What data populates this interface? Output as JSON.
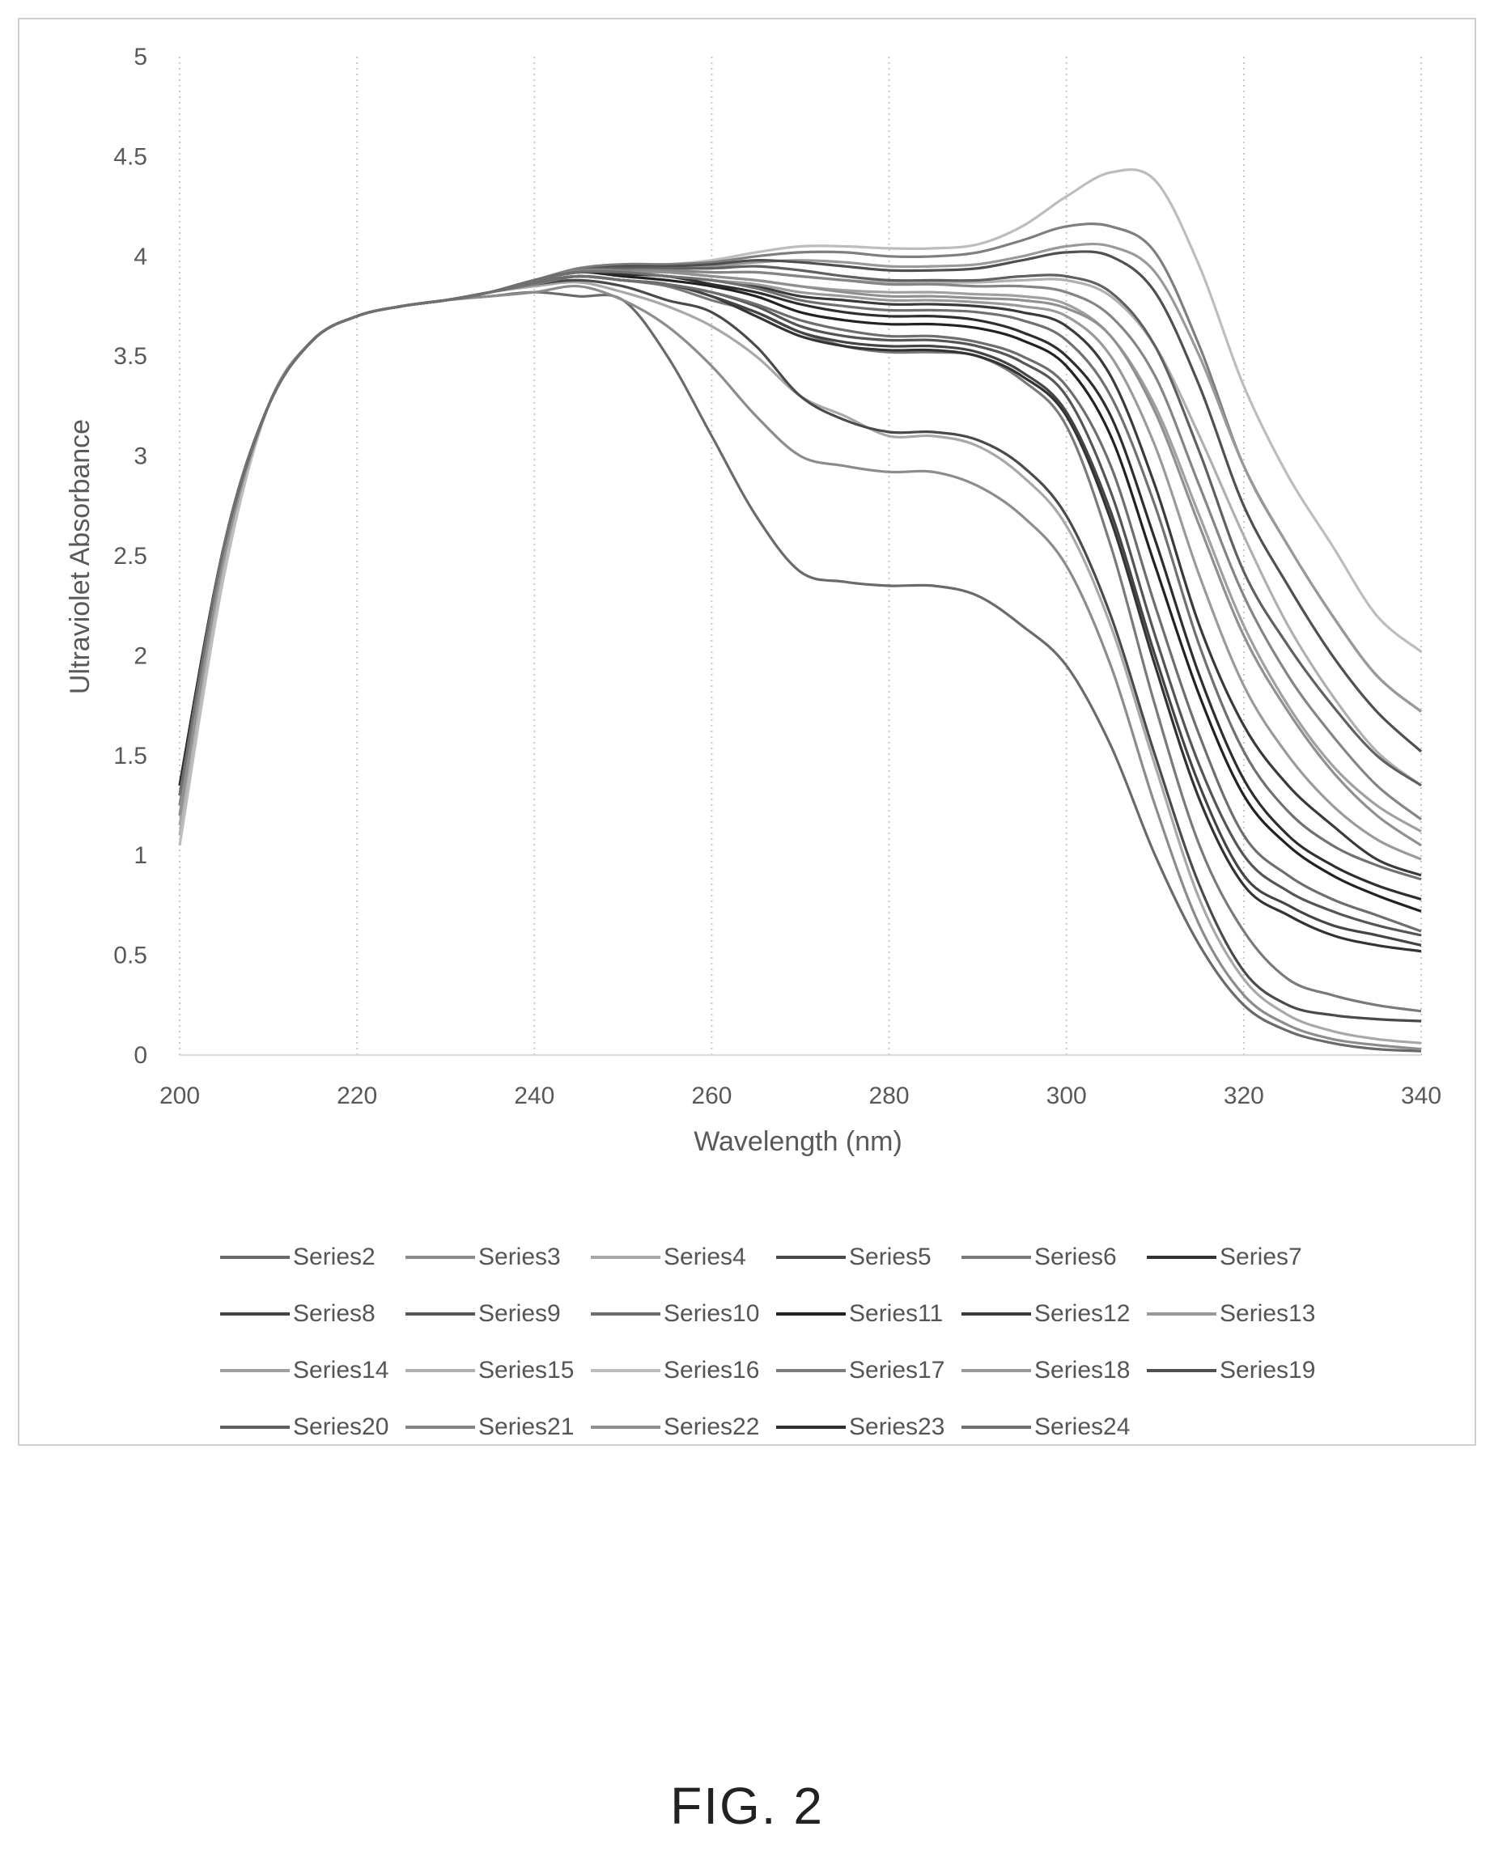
{
  "chart_data": {
    "type": "line",
    "title": "",
    "xlabel": "Wavelength (nm)",
    "ylabel": "Ultraviolet Absorbance",
    "xlim": [
      200,
      340
    ],
    "ylim": [
      0,
      5
    ],
    "xticks": [
      "200",
      "220",
      "240",
      "260",
      "280",
      "300",
      "320",
      "340"
    ],
    "yticks": [
      "0",
      "0.5",
      "1",
      "1.5",
      "2",
      "2.5",
      "3",
      "3.5",
      "4",
      "4.5",
      "5"
    ],
    "grid": "vertical dotted",
    "legend_position": "bottom",
    "x": [
      200,
      205,
      210,
      215,
      220,
      225,
      230,
      235,
      240,
      245,
      250,
      255,
      260,
      265,
      270,
      275,
      280,
      285,
      290,
      295,
      300,
      305,
      310,
      315,
      320,
      325,
      330,
      335,
      340
    ],
    "series": [
      {
        "name": "Series2",
        "color": "#6a6a6a",
        "values": [
          1.2,
          2.5,
          3.25,
          3.58,
          3.7,
          3.75,
          3.78,
          3.8,
          3.82,
          3.8,
          3.78,
          3.5,
          3.1,
          2.7,
          2.42,
          2.37,
          2.35,
          2.35,
          2.3,
          2.15,
          1.95,
          1.55,
          1.0,
          0.55,
          0.25,
          0.12,
          0.06,
          0.03,
          0.02
        ]
      },
      {
        "name": "Series3",
        "color": "#8c8c8c",
        "values": [
          1.25,
          2.5,
          3.25,
          3.58,
          3.7,
          3.75,
          3.78,
          3.8,
          3.82,
          3.85,
          3.78,
          3.65,
          3.45,
          3.2,
          3.0,
          2.95,
          2.92,
          2.92,
          2.85,
          2.7,
          2.45,
          1.95,
          1.25,
          0.65,
          0.3,
          0.15,
          0.08,
          0.05,
          0.03
        ]
      },
      {
        "name": "Series4",
        "color": "#a8a8a8",
        "values": [
          1.1,
          2.45,
          3.25,
          3.58,
          3.7,
          3.75,
          3.78,
          3.82,
          3.85,
          3.87,
          3.82,
          3.75,
          3.65,
          3.5,
          3.3,
          3.2,
          3.1,
          3.1,
          3.05,
          2.9,
          2.65,
          2.15,
          1.45,
          0.78,
          0.38,
          0.2,
          0.12,
          0.08,
          0.06
        ]
      },
      {
        "name": "Series5",
        "color": "#4a4a4a",
        "values": [
          1.3,
          2.55,
          3.25,
          3.58,
          3.7,
          3.75,
          3.78,
          3.82,
          3.86,
          3.88,
          3.85,
          3.78,
          3.72,
          3.55,
          3.3,
          3.18,
          3.12,
          3.12,
          3.08,
          2.95,
          2.7,
          2.2,
          1.5,
          0.85,
          0.42,
          0.25,
          0.2,
          0.18,
          0.17
        ]
      },
      {
        "name": "Series6",
        "color": "#7a7a7a",
        "values": [
          1.3,
          2.55,
          3.25,
          3.58,
          3.7,
          3.75,
          3.78,
          3.82,
          3.86,
          3.9,
          3.88,
          3.85,
          3.78,
          3.72,
          3.62,
          3.55,
          3.52,
          3.52,
          3.5,
          3.38,
          3.15,
          2.55,
          1.75,
          1.05,
          0.62,
          0.38,
          0.3,
          0.25,
          0.22
        ]
      },
      {
        "name": "Series7",
        "color": "#333333",
        "values": [
          1.35,
          2.55,
          3.25,
          3.58,
          3.7,
          3.75,
          3.78,
          3.82,
          3.87,
          3.9,
          3.88,
          3.86,
          3.8,
          3.7,
          3.6,
          3.55,
          3.53,
          3.53,
          3.5,
          3.4,
          3.2,
          2.68,
          1.95,
          1.28,
          0.85,
          0.7,
          0.6,
          0.55,
          0.52
        ]
      },
      {
        "name": "Series8",
        "color": "#444444",
        "values": [
          1.35,
          2.55,
          3.25,
          3.58,
          3.7,
          3.75,
          3.78,
          3.82,
          3.87,
          3.9,
          3.88,
          3.86,
          3.8,
          3.72,
          3.62,
          3.57,
          3.55,
          3.55,
          3.52,
          3.42,
          3.22,
          2.72,
          2.0,
          1.35,
          0.9,
          0.75,
          0.65,
          0.6,
          0.55
        ]
      },
      {
        "name": "Series9",
        "color": "#555555",
        "values": [
          1.3,
          2.55,
          3.25,
          3.58,
          3.7,
          3.75,
          3.78,
          3.82,
          3.87,
          3.9,
          3.88,
          3.86,
          3.82,
          3.75,
          3.65,
          3.6,
          3.58,
          3.58,
          3.55,
          3.47,
          3.3,
          2.82,
          2.1,
          1.45,
          1.0,
          0.82,
          0.72,
          0.65,
          0.6
        ]
      },
      {
        "name": "Series10",
        "color": "#6e6e6e",
        "values": [
          1.3,
          2.5,
          3.25,
          3.58,
          3.7,
          3.75,
          3.78,
          3.82,
          3.87,
          3.9,
          3.88,
          3.86,
          3.82,
          3.76,
          3.68,
          3.63,
          3.6,
          3.6,
          3.57,
          3.5,
          3.35,
          2.95,
          2.25,
          1.6,
          1.1,
          0.9,
          0.78,
          0.7,
          0.62
        ]
      },
      {
        "name": "Series11",
        "color": "#222222",
        "values": [
          1.35,
          2.55,
          3.25,
          3.58,
          3.7,
          3.75,
          3.78,
          3.82,
          3.88,
          3.92,
          3.9,
          3.88,
          3.85,
          3.8,
          3.72,
          3.68,
          3.66,
          3.66,
          3.64,
          3.58,
          3.45,
          3.1,
          2.45,
          1.8,
          1.3,
          1.05,
          0.9,
          0.8,
          0.72
        ]
      },
      {
        "name": "Series12",
        "color": "#3a3a3a",
        "values": [
          1.3,
          2.55,
          3.25,
          3.58,
          3.7,
          3.75,
          3.78,
          3.82,
          3.88,
          3.92,
          3.92,
          3.9,
          3.88,
          3.85,
          3.8,
          3.78,
          3.76,
          3.76,
          3.75,
          3.72,
          3.65,
          3.4,
          2.85,
          2.15,
          1.65,
          1.35,
          1.15,
          0.98,
          0.9
        ]
      },
      {
        "name": "Series13",
        "color": "#9a9a9a",
        "values": [
          1.2,
          2.5,
          3.25,
          3.58,
          3.7,
          3.75,
          3.78,
          3.82,
          3.88,
          3.92,
          3.92,
          3.9,
          3.88,
          3.86,
          3.82,
          3.8,
          3.78,
          3.78,
          3.77,
          3.75,
          3.7,
          3.5,
          3.05,
          2.4,
          1.85,
          1.5,
          1.25,
          1.08,
          0.98
        ]
      },
      {
        "name": "Series14",
        "color": "#a0a0a0",
        "values": [
          1.15,
          2.45,
          3.25,
          3.58,
          3.7,
          3.75,
          3.78,
          3.82,
          3.88,
          3.93,
          3.93,
          3.92,
          3.9,
          3.88,
          3.85,
          3.83,
          3.82,
          3.82,
          3.81,
          3.8,
          3.76,
          3.6,
          3.25,
          2.7,
          2.15,
          1.75,
          1.45,
          1.25,
          1.12
        ]
      },
      {
        "name": "Series15",
        "color": "#b0b0b0",
        "values": [
          1.1,
          2.45,
          3.25,
          3.58,
          3.7,
          3.75,
          3.78,
          3.82,
          3.88,
          3.93,
          3.94,
          3.93,
          3.92,
          3.92,
          3.9,
          3.88,
          3.87,
          3.87,
          3.87,
          3.88,
          3.88,
          3.8,
          3.55,
          3.1,
          2.6,
          2.15,
          1.8,
          1.52,
          1.35
        ]
      },
      {
        "name": "Series16",
        "color": "#bdbdbd",
        "values": [
          1.05,
          2.4,
          3.25,
          3.58,
          3.7,
          3.75,
          3.78,
          3.82,
          3.88,
          3.94,
          3.96,
          3.96,
          3.98,
          4.02,
          4.05,
          4.05,
          4.04,
          4.04,
          4.06,
          4.15,
          4.3,
          4.42,
          4.38,
          3.95,
          3.35,
          2.9,
          2.55,
          2.2,
          2.02
        ]
      },
      {
        "name": "Series17",
        "color": "#7e7e7e",
        "values": [
          1.25,
          2.5,
          3.25,
          3.58,
          3.7,
          3.75,
          3.78,
          3.82,
          3.88,
          3.94,
          3.96,
          3.96,
          3.97,
          4.0,
          4.02,
          4.02,
          4.0,
          4.0,
          4.02,
          4.08,
          4.15,
          4.15,
          4.02,
          3.55,
          2.95,
          2.55,
          2.2,
          1.9,
          1.72
        ]
      },
      {
        "name": "Series18",
        "color": "#999999",
        "values": [
          1.2,
          2.5,
          3.25,
          3.58,
          3.7,
          3.75,
          3.78,
          3.82,
          3.88,
          3.93,
          3.95,
          3.95,
          3.95,
          3.97,
          3.98,
          3.97,
          3.95,
          3.95,
          3.96,
          4.0,
          4.05,
          4.05,
          3.92,
          3.5,
          2.95,
          2.55,
          2.2,
          1.9,
          1.72
        ]
      },
      {
        "name": "Series19",
        "color": "#505050",
        "values": [
          1.3,
          2.55,
          3.25,
          3.58,
          3.7,
          3.75,
          3.78,
          3.82,
          3.88,
          3.93,
          3.95,
          3.95,
          3.96,
          3.98,
          3.97,
          3.95,
          3.93,
          3.93,
          3.94,
          3.98,
          4.02,
          4.0,
          3.82,
          3.35,
          2.75,
          2.35,
          2.0,
          1.72,
          1.52
        ]
      },
      {
        "name": "Series20",
        "color": "#606060",
        "values": [
          1.3,
          2.55,
          3.25,
          3.58,
          3.7,
          3.75,
          3.78,
          3.82,
          3.88,
          3.93,
          3.94,
          3.94,
          3.94,
          3.95,
          3.93,
          3.9,
          3.88,
          3.88,
          3.88,
          3.9,
          3.9,
          3.82,
          3.55,
          3.02,
          2.42,
          2.05,
          1.75,
          1.5,
          1.35
        ]
      },
      {
        "name": "Series21",
        "color": "#858585",
        "values": [
          1.25,
          2.5,
          3.25,
          3.58,
          3.7,
          3.75,
          3.78,
          3.82,
          3.88,
          3.93,
          3.93,
          3.93,
          3.92,
          3.92,
          3.9,
          3.88,
          3.86,
          3.86,
          3.85,
          3.85,
          3.82,
          3.7,
          3.4,
          2.85,
          2.3,
          1.9,
          1.6,
          1.35,
          1.18
        ]
      },
      {
        "name": "Series22",
        "color": "#909090",
        "values": [
          1.2,
          2.5,
          3.25,
          3.58,
          3.7,
          3.75,
          3.78,
          3.82,
          3.88,
          3.92,
          3.92,
          3.92,
          3.9,
          3.88,
          3.85,
          3.82,
          3.8,
          3.8,
          3.79,
          3.78,
          3.74,
          3.6,
          3.22,
          2.65,
          2.1,
          1.72,
          1.42,
          1.2,
          1.05
        ]
      },
      {
        "name": "Series23",
        "color": "#2e2e2e",
        "values": [
          1.35,
          2.55,
          3.25,
          3.58,
          3.7,
          3.75,
          3.78,
          3.82,
          3.88,
          3.92,
          3.91,
          3.9,
          3.86,
          3.82,
          3.76,
          3.72,
          3.7,
          3.7,
          3.68,
          3.62,
          3.5,
          3.2,
          2.58,
          1.9,
          1.38,
          1.1,
          0.95,
          0.85,
          0.78
        ]
      },
      {
        "name": "Series24",
        "color": "#707070",
        "values": [
          1.3,
          2.55,
          3.25,
          3.58,
          3.7,
          3.75,
          3.78,
          3.82,
          3.88,
          3.92,
          3.92,
          3.9,
          3.88,
          3.84,
          3.78,
          3.75,
          3.73,
          3.73,
          3.72,
          3.68,
          3.58,
          3.3,
          2.75,
          2.05,
          1.52,
          1.22,
          1.05,
          0.95,
          0.88
        ]
      }
    ]
  },
  "figure": {
    "label": "FIG. 2"
  }
}
